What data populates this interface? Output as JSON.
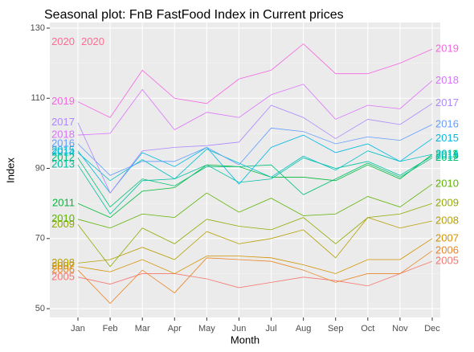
{
  "chart_data": {
    "type": "line",
    "title": "Seasonal plot: FnB FastFood Index in Current prices",
    "xlabel": "Month",
    "ylabel": "Index",
    "categories": [
      "Jan",
      "Feb",
      "Mar",
      "Apr",
      "May",
      "Jun",
      "Jul",
      "Aug",
      "Sep",
      "Oct",
      "Nov",
      "Dec"
    ],
    "ylim": [
      47.5,
      131.6
    ],
    "yticks": [
      50,
      70,
      90,
      110,
      130
    ],
    "grid": true,
    "series": [
      {
        "name": "2005",
        "color": "#F8766D",
        "values": [
          59,
          57,
          60,
          60,
          58.5,
          56,
          57.5,
          59,
          58,
          56.5,
          60,
          63.5
        ]
      },
      {
        "name": "2006",
        "color": "#E88526",
        "values": [
          61,
          51.5,
          61,
          54.5,
          64.5,
          64,
          63.5,
          61,
          57.5,
          60,
          60,
          66.5
        ]
      },
      {
        "name": "2007",
        "color": "#D39200",
        "values": [
          62,
          60.5,
          64,
          60,
          65,
          65,
          64.5,
          62.5,
          60,
          64,
          64,
          70
        ]
      },
      {
        "name": "2008",
        "color": "#B79F00",
        "values": [
          63,
          64,
          67.5,
          64,
          72,
          68.5,
          70,
          72.5,
          64.5,
          76,
          73,
          75
        ]
      },
      {
        "name": "2009",
        "color": "#93AA00",
        "values": [
          74,
          62,
          73,
          68.5,
          75.5,
          73.5,
          72.5,
          76,
          68.5,
          76,
          77,
          80
        ]
      },
      {
        "name": "2010",
        "color": "#5EB300",
        "values": [
          75.5,
          73,
          77,
          76,
          83,
          77.5,
          81.5,
          76.5,
          77,
          82,
          79,
          85.5
        ]
      },
      {
        "name": "2011",
        "color": "#00BA38",
        "values": [
          80,
          76,
          83.5,
          84.5,
          91,
          90.5,
          87.5,
          87.5,
          86.5,
          91,
          87,
          94
        ]
      },
      {
        "name": "2012",
        "color": "#00BF74",
        "values": [
          93,
          79,
          87,
          85,
          90.5,
          90.5,
          91,
          82.5,
          87,
          91.5,
          87.5,
          93
        ]
      },
      {
        "name": "2013",
        "color": "#00C19F",
        "values": [
          91,
          77,
          86.5,
          87,
          91,
          86,
          87,
          93,
          90,
          92,
          88,
          93.5
        ]
      },
      {
        "name": "2014",
        "color": "#00BFC4",
        "values": [
          94.5,
          86.5,
          92.5,
          87,
          95.5,
          91.5,
          87.5,
          93.5,
          89.5,
          95,
          92,
          94
        ]
      },
      {
        "name": "2015",
        "color": "#00B9E3",
        "values": [
          95,
          83,
          94.5,
          90.5,
          96,
          85.5,
          96,
          99.5,
          94.5,
          97,
          92,
          98.5
        ]
      },
      {
        "name": "2016",
        "color": "#619CFF",
        "values": [
          97,
          88,
          92,
          92,
          96,
          91,
          101.5,
          100.5,
          97,
          99,
          98,
          102.5
        ]
      },
      {
        "name": "2017",
        "color": "#AE87FF",
        "values": [
          103,
          83,
          95,
          96,
          96.5,
          97.5,
          108,
          104.5,
          98.5,
          104,
          102.5,
          108.5
        ]
      },
      {
        "name": "2018",
        "color": "#DB72FB",
        "values": [
          99.5,
          100,
          112.5,
          101,
          106,
          104.5,
          111,
          114,
          104,
          108,
          107,
          115
        ]
      },
      {
        "name": "2019",
        "color": "#F564E3",
        "values": [
          109,
          104.5,
          118,
          110,
          108.5,
          115.5,
          118,
          125.5,
          117,
          117,
          120,
          124
        ]
      },
      {
        "name": "2020",
        "color": "#FF6C91",
        "values": [
          126,
          null,
          null,
          null,
          null,
          null,
          null,
          null,
          null,
          null,
          null,
          null
        ]
      }
    ]
  }
}
